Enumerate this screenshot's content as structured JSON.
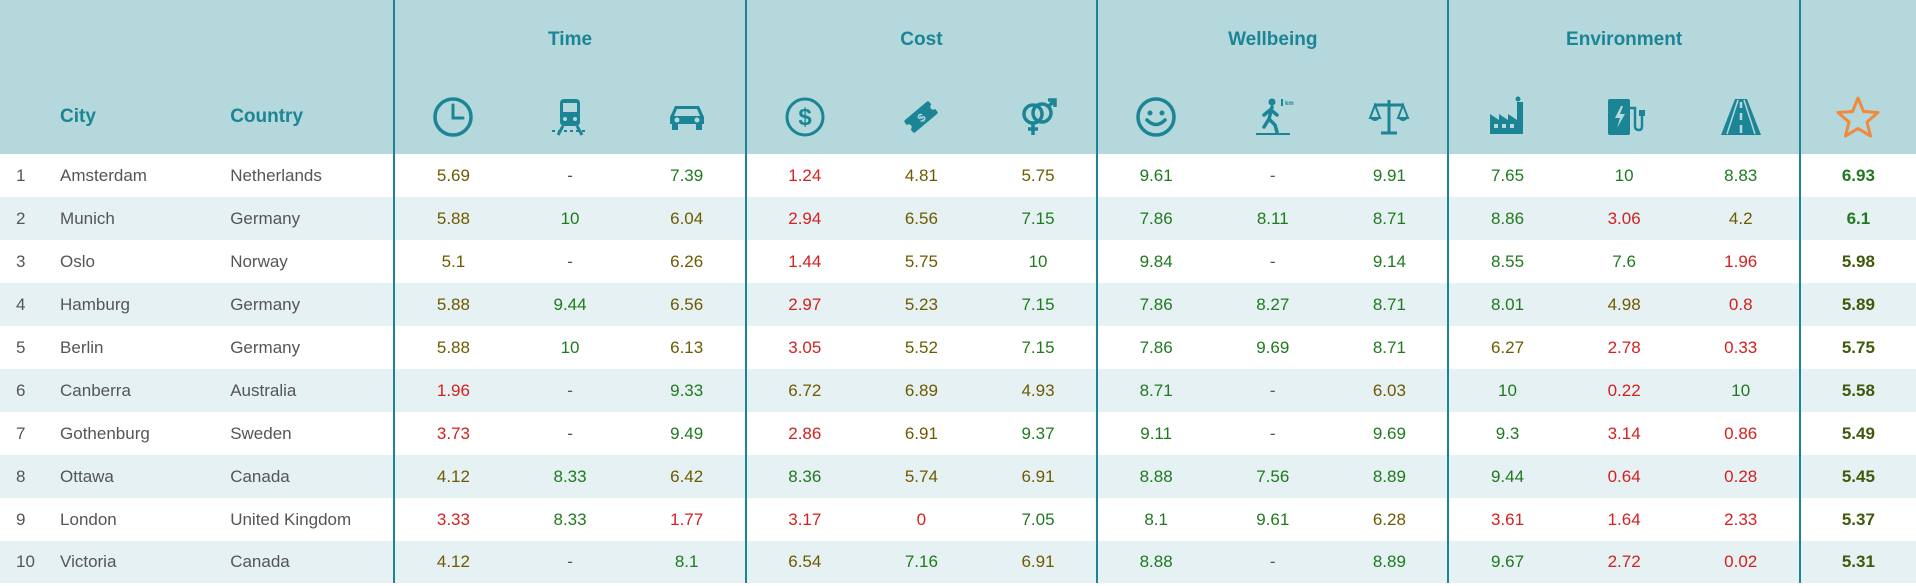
{
  "groups": [
    "Time",
    "Cost",
    "Wellbeing",
    "Environment"
  ],
  "headers": {
    "rank": "",
    "city": "City",
    "country": "Country"
  },
  "metric_icons": [
    "clock-icon",
    "tram-icon",
    "car-icon",
    "dollar-coin-icon",
    "ticket-icon",
    "gender-icon",
    "smiley-icon",
    "walking-distance-icon",
    "scales-icon",
    "factory-icon",
    "ev-charger-icon",
    "road-icon"
  ],
  "score_icon": "star-icon",
  "colors": {
    "header_bg": "#b4d8dc",
    "accent": "#1c8595",
    "star": "#f08a3c",
    "row_alt": "#e5f1f2",
    "good": "#1f7a1f",
    "mid": "#6e5a00",
    "bad": "#d42020"
  },
  "rows": [
    {
      "rank": "1",
      "city": "Amsterdam",
      "country": "Netherlands",
      "values": [
        "5.69",
        "-",
        "7.39",
        "1.24",
        "4.81",
        "5.75",
        "9.61",
        "-",
        "9.91",
        "7.65",
        "10",
        "8.83"
      ],
      "score": "6.93"
    },
    {
      "rank": "2",
      "city": "Munich",
      "country": "Germany",
      "values": [
        "5.88",
        "10",
        "6.04",
        "2.94",
        "6.56",
        "7.15",
        "7.86",
        "8.11",
        "8.71",
        "8.86",
        "3.06",
        "4.2"
      ],
      "score": "6.1"
    },
    {
      "rank": "3",
      "city": "Oslo",
      "country": "Norway",
      "values": [
        "5.1",
        "-",
        "6.26",
        "1.44",
        "5.75",
        "10",
        "9.84",
        "-",
        "9.14",
        "8.55",
        "7.6",
        "1.96"
      ],
      "score": "5.98"
    },
    {
      "rank": "4",
      "city": "Hamburg",
      "country": "Germany",
      "values": [
        "5.88",
        "9.44",
        "6.56",
        "2.97",
        "5.23",
        "7.15",
        "7.86",
        "8.27",
        "8.71",
        "8.01",
        "4.98",
        "0.8"
      ],
      "score": "5.89"
    },
    {
      "rank": "5",
      "city": "Berlin",
      "country": "Germany",
      "values": [
        "5.88",
        "10",
        "6.13",
        "3.05",
        "5.52",
        "7.15",
        "7.86",
        "9.69",
        "8.71",
        "6.27",
        "2.78",
        "0.33"
      ],
      "score": "5.75"
    },
    {
      "rank": "6",
      "city": "Canberra",
      "country": "Australia",
      "values": [
        "1.96",
        "-",
        "9.33",
        "6.72",
        "6.89",
        "4.93",
        "8.71",
        "-",
        "6.03",
        "10",
        "0.22",
        "10"
      ],
      "score": "5.58"
    },
    {
      "rank": "7",
      "city": "Gothenburg",
      "country": "Sweden",
      "values": [
        "3.73",
        "-",
        "9.49",
        "2.86",
        "6.91",
        "9.37",
        "9.11",
        "-",
        "9.69",
        "9.3",
        "3.14",
        "0.86"
      ],
      "score": "5.49"
    },
    {
      "rank": "8",
      "city": "Ottawa",
      "country": "Canada",
      "values": [
        "4.12",
        "8.33",
        "6.42",
        "8.36",
        "5.74",
        "6.91",
        "8.88",
        "7.56",
        "8.89",
        "9.44",
        "0.64",
        "0.28"
      ],
      "score": "5.45"
    },
    {
      "rank": "9",
      "city": "London",
      "country": "United Kingdom",
      "values": [
        "3.33",
        "8.33",
        "1.77",
        "3.17",
        "0",
        "7.05",
        "8.1",
        "9.61",
        "6.28",
        "3.61",
        "1.64",
        "2.33"
      ],
      "score": "5.37"
    },
    {
      "rank": "10",
      "city": "Victoria",
      "country": "Canada",
      "values": [
        "4.12",
        "-",
        "8.1",
        "6.54",
        "7.16",
        "6.91",
        "8.88",
        "-",
        "8.89",
        "9.67",
        "2.72",
        "0.02"
      ],
      "score": "5.31"
    }
  ]
}
